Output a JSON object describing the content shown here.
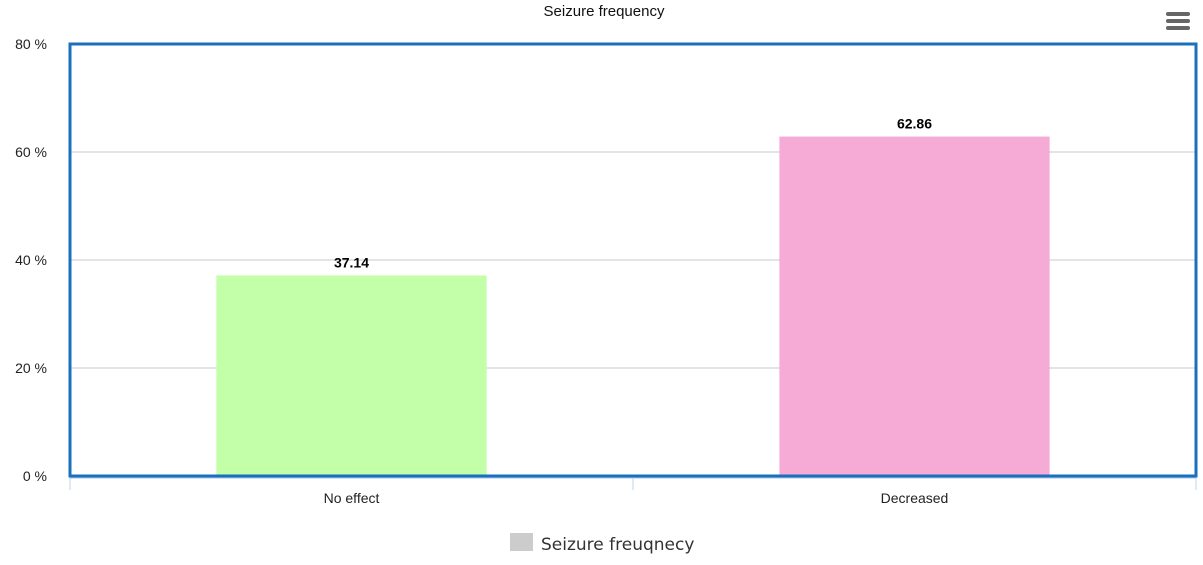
{
  "chart_data": {
    "type": "bar",
    "title": "Seizure frequency",
    "categories": [
      "No effect",
      "Decreased"
    ],
    "values": [
      37.14,
      62.86
    ],
    "data_labels": [
      "37.14",
      "62.86"
    ],
    "bar_colors": [
      "#c2ffa8",
      "#f5abd5"
    ],
    "ylim": [
      0,
      80
    ],
    "y_ticks": [
      0,
      20,
      40,
      60,
      80
    ],
    "y_tick_labels": [
      "0 %",
      "20 %",
      "40 %",
      "60 %",
      "80 %"
    ],
    "grid": true,
    "legend": {
      "placement": "bottom-center",
      "entries": [
        {
          "label": "Seizure freuqnecy",
          "color": "#cccccc"
        }
      ]
    },
    "plot_border_color": "#1a6fbf"
  },
  "toolbar": {
    "menu_icon": "hamburger-menu-icon"
  }
}
